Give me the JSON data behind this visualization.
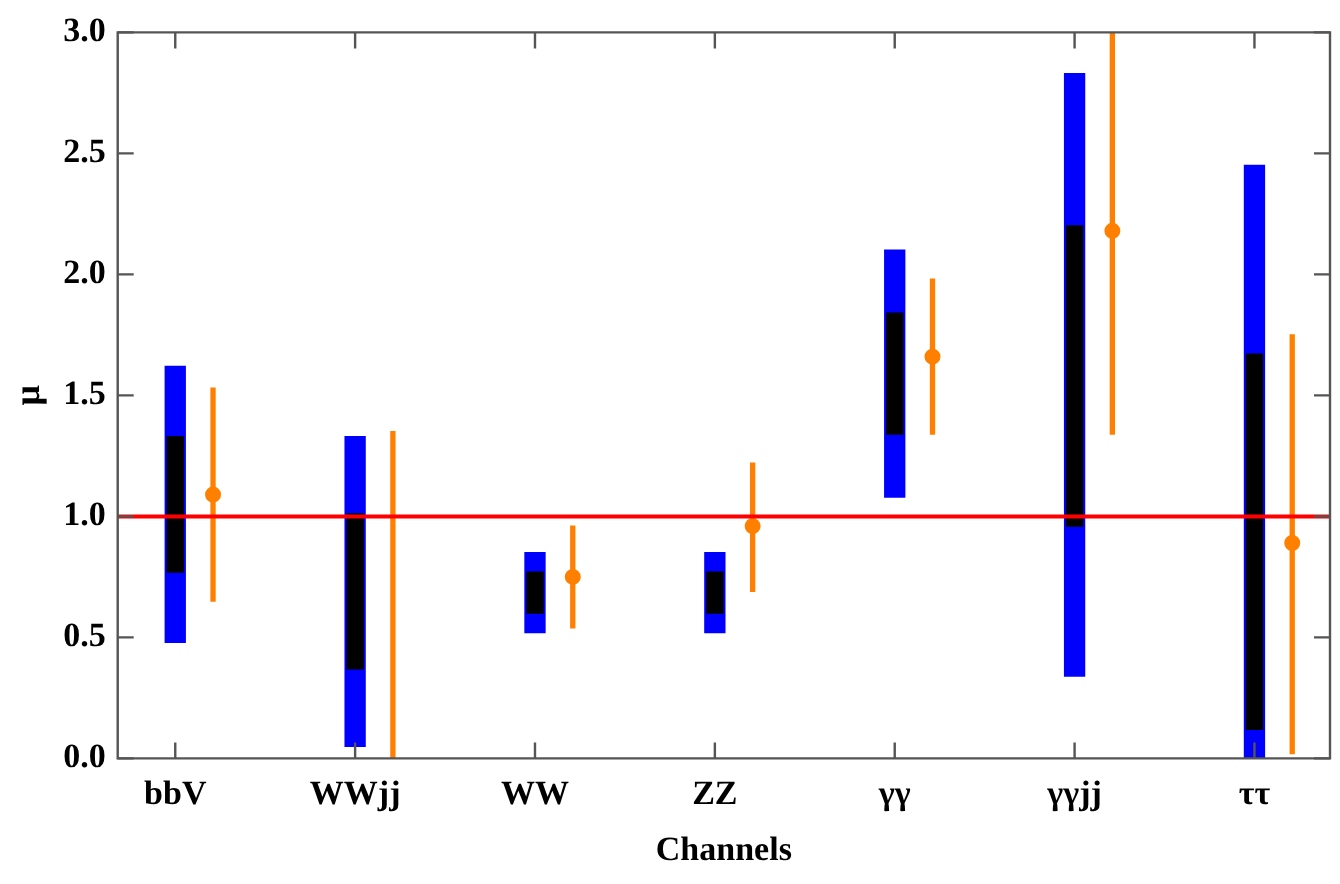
{
  "chart_data": {
    "type": "bar",
    "xlabel": "Channels",
    "ylabel": "μ",
    "categories": [
      "bbV",
      "WWjj",
      "WW",
      "ZZ",
      "γγ",
      "γγjj",
      "ττ"
    ],
    "ylim": [
      0,
      3
    ],
    "yticks": [
      {
        "value": 0,
        "label": "0.0"
      },
      {
        "value": 0.5,
        "label": "0.5"
      },
      {
        "value": 1,
        "label": "1.0"
      },
      {
        "value": 1.5,
        "label": "1.5"
      },
      {
        "value": 2,
        "label": "2.0"
      },
      {
        "value": 2.5,
        "label": "2.5"
      },
      {
        "value": 3,
        "label": "3.0"
      }
    ],
    "series": [
      {
        "color": "#0000ff",
        "base": [
          0.48,
          0.05,
          0.52,
          0.52,
          1.08,
          0.34,
          0
        ],
        "values": [
          1.14,
          1.28,
          0.33,
          0.33,
          1.02,
          2.49,
          2.45
        ]
      },
      {
        "color": "#000000",
        "base": [
          0.77,
          0.37,
          0.6,
          0.6,
          1.34,
          0.96,
          0.12
        ],
        "values": [
          0.56,
          0.64,
          0.17,
          0.17,
          0.5,
          1.24,
          1.55
        ]
      },
      {
        "color": "#ff8000",
        "base": [
          0.65,
          0,
          0.54,
          0.69,
          1.34,
          1.34,
          0.02
        ],
        "values": [
          0.88,
          1.35,
          0.42,
          0.53,
          0.64,
          1.66,
          1.73
        ]
      },
      {
        "type": "scatter",
        "color": "#ff8000",
        "values": [
          1.09,
          null,
          0.75,
          0.96,
          1.66,
          2.18,
          0.89
        ]
      }
    ],
    "ref_lines": [
      {
        "axis": "y",
        "value": 1,
        "color": "#ff0000"
      }
    ],
    "grid": false,
    "legend": false,
    "marker": "circle"
  }
}
